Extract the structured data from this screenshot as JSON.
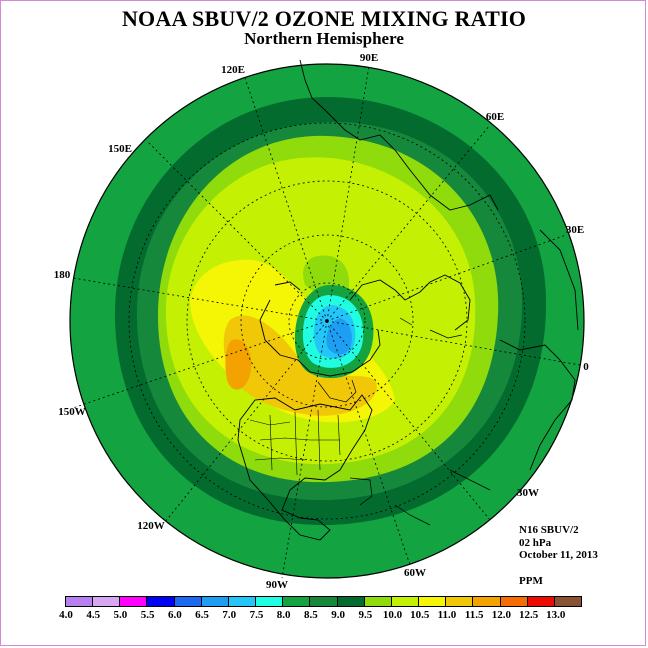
{
  "title": "NOAA SBUV/2 OZONE MIXING RATIO",
  "subtitle": "Northern Hemisphere",
  "info": {
    "instrument": "N16 SBUV/2",
    "level": "02 hPa",
    "date": "October 11, 2013",
    "units": "PPM"
  },
  "map": {
    "projection": "north polar stereographic",
    "longitude_labels": [
      "90E",
      "60E",
      "30E",
      "0",
      "30W",
      "60W",
      "90W",
      "120W",
      "150W",
      "180",
      "150E",
      "120E"
    ],
    "latitude_circles": [
      20,
      40,
      60,
      80
    ]
  },
  "colorbar": {
    "levels": [
      "4.0",
      "4.5",
      "5.0",
      "5.5",
      "6.0",
      "6.5",
      "7.0",
      "7.5",
      "8.0",
      "8.5",
      "9.0",
      "9.5",
      "10.0",
      "10.5",
      "11.0",
      "11.5",
      "12.0",
      "12.5",
      "13.0"
    ],
    "colors": [
      "#b77ff0",
      "#d7a7f3",
      "#ff00ff",
      "#0000f5",
      "#1d68f0",
      "#1e9ef2",
      "#23c6f8",
      "#21fde0",
      "#13a341",
      "#15883b",
      "#036b2e",
      "#8fdb0c",
      "#c4f003",
      "#f4f605",
      "#f0c808",
      "#f4a201",
      "#f66d06",
      "#ee0b02",
      "#8a5134"
    ]
  }
}
